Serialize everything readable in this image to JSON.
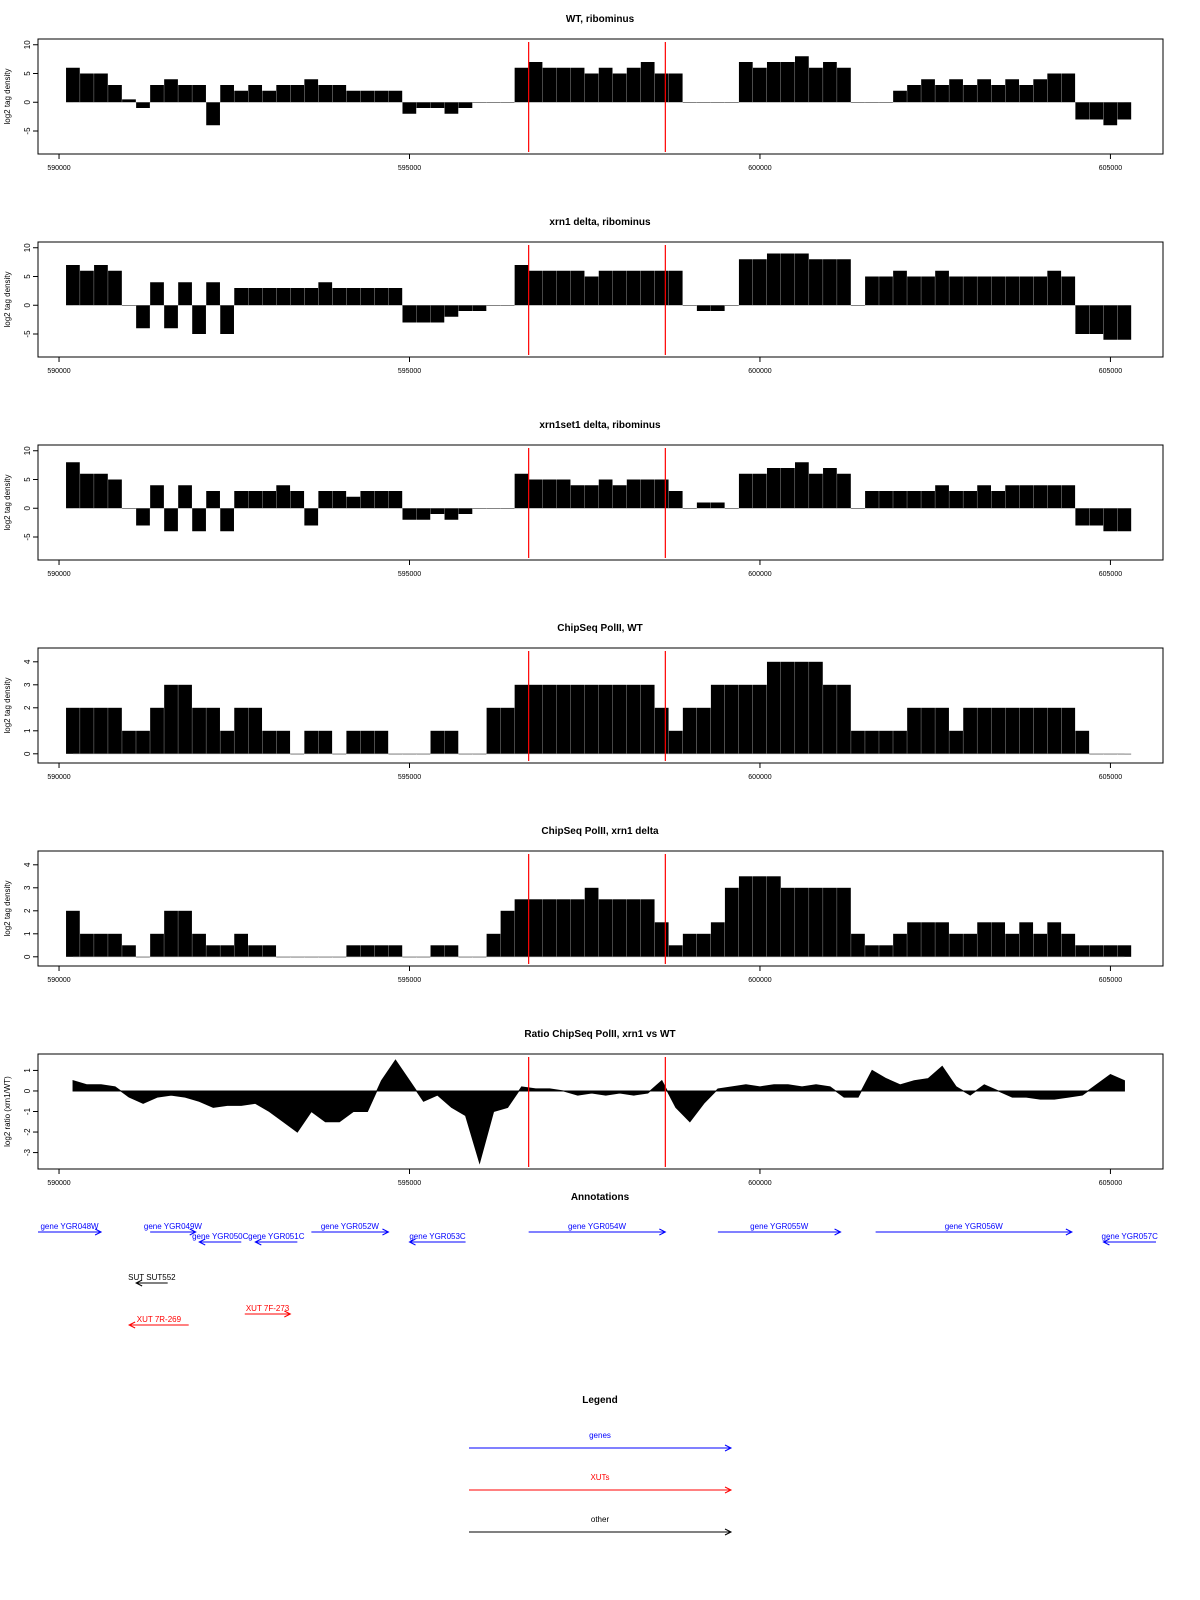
{
  "chart_data": [
    {
      "type": "bar",
      "title": "WT, ribominus",
      "ylabel": "log2 tag density",
      "xlim": [
        589700,
        605750
      ],
      "ylim": [
        -9,
        11
      ],
      "x_ticks": [
        590000,
        595000,
        600000,
        605000
      ],
      "y_ticks": [
        -5,
        0,
        5,
        10
      ],
      "x": [
        590200,
        590400,
        590600,
        590800,
        591000,
        591200,
        591400,
        591600,
        591800,
        592000,
        592200,
        592400,
        592600,
        592800,
        593000,
        593200,
        593400,
        593600,
        593800,
        594000,
        594200,
        594400,
        594600,
        594800,
        595000,
        595200,
        595400,
        595600,
        595800,
        596000,
        596200,
        596400,
        596600,
        596800,
        597000,
        597200,
        597400,
        597600,
        597800,
        598000,
        598200,
        598400,
        598600,
        598800,
        599000,
        599200,
        599400,
        599600,
        599800,
        600000,
        600200,
        600400,
        600600,
        600800,
        601000,
        601200,
        601400,
        601600,
        601800,
        602000,
        602200,
        602400,
        602600,
        602800,
        603000,
        603200,
        603400,
        603600,
        603800,
        604000,
        604200,
        604400,
        604600,
        604800,
        605000,
        605200
      ],
      "values": [
        6,
        5,
        5,
        3,
        0.5,
        -1,
        3,
        4,
        3,
        3,
        -4,
        3,
        2,
        3,
        2,
        3,
        3,
        4,
        3,
        3,
        2,
        2,
        2,
        2,
        -2,
        -1,
        -1,
        -2,
        -1,
        0,
        0,
        0,
        6,
        7,
        6,
        6,
        6,
        5,
        6,
        5,
        6,
        7,
        5,
        5,
        0,
        0,
        0,
        0,
        7,
        6,
        7,
        7,
        8,
        6,
        7,
        6,
        0,
        0,
        0,
        2,
        3,
        4,
        3,
        4,
        3,
        4,
        3,
        4,
        3,
        4,
        5,
        5,
        -3,
        -3,
        -4,
        -3
      ],
      "markers": [
        596700,
        598650
      ]
    },
    {
      "type": "bar",
      "title": "xrn1 delta, ribominus",
      "ylabel": "log2 tag density",
      "xlim": [
        589700,
        605750
      ],
      "ylim": [
        -9,
        11
      ],
      "x_ticks": [
        590000,
        595000,
        600000,
        605000
      ],
      "y_ticks": [
        -5,
        0,
        5,
        10
      ],
      "x": [
        590200,
        590400,
        590600,
        590800,
        591000,
        591200,
        591400,
        591600,
        591800,
        592000,
        592200,
        592400,
        592600,
        592800,
        593000,
        593200,
        593400,
        593600,
        593800,
        594000,
        594200,
        594400,
        594600,
        594800,
        595000,
        595200,
        595400,
        595600,
        595800,
        596000,
        596200,
        596400,
        596600,
        596800,
        597000,
        597200,
        597400,
        597600,
        597800,
        598000,
        598200,
        598400,
        598600,
        598800,
        599000,
        599200,
        599400,
        599600,
        599800,
        600000,
        600200,
        600400,
        600600,
        600800,
        601000,
        601200,
        601400,
        601600,
        601800,
        602000,
        602200,
        602400,
        602600,
        602800,
        603000,
        603200,
        603400,
        603600,
        603800,
        604000,
        604200,
        604400,
        604600,
        604800,
        605000,
        605200
      ],
      "values": [
        7,
        6,
        7,
        6,
        0,
        -4,
        4,
        -4,
        4,
        -5,
        4,
        -5,
        3,
        3,
        3,
        3,
        3,
        3,
        4,
        3,
        3,
        3,
        3,
        3,
        -3,
        -3,
        -3,
        -2,
        -1,
        -1,
        0,
        0,
        7,
        6,
        6,
        6,
        6,
        5,
        6,
        6,
        6,
        6,
        6,
        6,
        0,
        -1,
        -1,
        0,
        8,
        8,
        9,
        9,
        9,
        8,
        8,
        8,
        0,
        5,
        5,
        6,
        5,
        5,
        6,
        5,
        5,
        5,
        5,
        5,
        5,
        5,
        6,
        5,
        -5,
        -5,
        -6,
        -6
      ],
      "markers": [
        596700,
        598650
      ]
    },
    {
      "type": "bar",
      "title": "xrn1set1 delta, ribominus",
      "ylabel": "log2 tag density",
      "xlim": [
        589700,
        605750
      ],
      "ylim": [
        -9,
        11
      ],
      "x_ticks": [
        590000,
        595000,
        600000,
        605000
      ],
      "y_ticks": [
        -5,
        0,
        5,
        10
      ],
      "x": [
        590200,
        590400,
        590600,
        590800,
        591000,
        591200,
        591400,
        591600,
        591800,
        592000,
        592200,
        592400,
        592600,
        592800,
        593000,
        593200,
        593400,
        593600,
        593800,
        594000,
        594200,
        594400,
        594600,
        594800,
        595000,
        595200,
        595400,
        595600,
        595800,
        596000,
        596200,
        596400,
        596600,
        596800,
        597000,
        597200,
        597400,
        597600,
        597800,
        598000,
        598200,
        598400,
        598600,
        598800,
        599000,
        599200,
        599400,
        599600,
        599800,
        600000,
        600200,
        600400,
        600600,
        600800,
        601000,
        601200,
        601400,
        601600,
        601800,
        602000,
        602200,
        602400,
        602600,
        602800,
        603000,
        603200,
        603400,
        603600,
        603800,
        604000,
        604200,
        604400,
        604600,
        604800,
        605000,
        605200
      ],
      "values": [
        8,
        6,
        6,
        5,
        0,
        -3,
        4,
        -4,
        4,
        -4,
        3,
        -4,
        3,
        3,
        3,
        4,
        3,
        -3,
        3,
        3,
        2,
        3,
        3,
        3,
        -2,
        -2,
        -1,
        -2,
        -1,
        0,
        0,
        0,
        6,
        5,
        5,
        5,
        4,
        4,
        5,
        4,
        5,
        5,
        5,
        3,
        0,
        1,
        1,
        0,
        6,
        6,
        7,
        7,
        8,
        6,
        7,
        6,
        0,
        3,
        3,
        3,
        3,
        3,
        4,
        3,
        3,
        4,
        3,
        4,
        4,
        4,
        4,
        4,
        -3,
        -3,
        -4,
        -4
      ],
      "markers": [
        596700,
        598650
      ]
    },
    {
      "type": "bar",
      "title": "ChipSeq PolII, WT",
      "ylabel": "log2 tag density",
      "xlim": [
        589700,
        605750
      ],
      "ylim": [
        -0.4,
        4.6
      ],
      "x_ticks": [
        590000,
        595000,
        600000,
        605000
      ],
      "y_ticks": [
        0,
        1,
        2,
        3,
        4
      ],
      "x": [
        590200,
        590400,
        590600,
        590800,
        591000,
        591200,
        591400,
        591600,
        591800,
        592000,
        592200,
        592400,
        592600,
        592800,
        593000,
        593200,
        593400,
        593600,
        593800,
        594000,
        594200,
        594400,
        594600,
        594800,
        595000,
        595200,
        595400,
        595600,
        595800,
        596000,
        596200,
        596400,
        596600,
        596800,
        597000,
        597200,
        597400,
        597600,
        597800,
        598000,
        598200,
        598400,
        598600,
        598800,
        599000,
        599200,
        599400,
        599600,
        599800,
        600000,
        600200,
        600400,
        600600,
        600800,
        601000,
        601200,
        601400,
        601600,
        601800,
        602000,
        602200,
        602400,
        602600,
        602800,
        603000,
        603200,
        603400,
        603600,
        603800,
        604000,
        604200,
        604400,
        604600,
        604800,
        605000,
        605200
      ],
      "values": [
        2,
        2,
        2,
        2,
        1,
        1,
        2,
        3,
        3,
        2,
        2,
        1,
        2,
        2,
        1,
        1,
        0,
        1,
        1,
        0,
        1,
        1,
        1,
        0,
        0,
        0,
        1,
        1,
        0,
        0,
        2,
        2,
        3,
        3,
        3,
        3,
        3,
        3,
        3,
        3,
        3,
        3,
        2,
        1,
        2,
        2,
        3,
        3,
        3,
        3,
        4,
        4,
        4,
        4,
        3,
        3,
        1,
        1,
        1,
        1,
        2,
        2,
        2,
        1,
        2,
        2,
        2,
        2,
        2,
        2,
        2,
        2,
        1,
        0,
        0,
        0
      ],
      "markers": [
        596700,
        598650
      ]
    },
    {
      "type": "bar",
      "title": "ChipSeq PolII, xrn1 delta",
      "ylabel": "log2 tag density",
      "xlim": [
        589700,
        605750
      ],
      "ylim": [
        -0.4,
        4.6
      ],
      "x_ticks": [
        590000,
        595000,
        600000,
        605000
      ],
      "y_ticks": [
        0,
        1,
        2,
        3,
        4
      ],
      "x": [
        590200,
        590400,
        590600,
        590800,
        591000,
        591200,
        591400,
        591600,
        591800,
        592000,
        592200,
        592400,
        592600,
        592800,
        593000,
        593200,
        593400,
        593600,
        593800,
        594000,
        594200,
        594400,
        594600,
        594800,
        595000,
        595200,
        595400,
        595600,
        595800,
        596000,
        596200,
        596400,
        596600,
        596800,
        597000,
        597200,
        597400,
        597600,
        597800,
        598000,
        598200,
        598400,
        598600,
        598800,
        599000,
        599200,
        599400,
        599600,
        599800,
        600000,
        600200,
        600400,
        600600,
        600800,
        601000,
        601200,
        601400,
        601600,
        601800,
        602000,
        602200,
        602400,
        602600,
        602800,
        603000,
        603200,
        603400,
        603600,
        603800,
        604000,
        604200,
        604400,
        604600,
        604800,
        605000,
        605200
      ],
      "values": [
        2,
        1,
        1,
        1,
        0.5,
        0,
        1,
        2,
        2,
        1,
        0.5,
        0.5,
        1,
        0.5,
        0.5,
        0,
        0,
        0,
        0,
        0,
        0.5,
        0.5,
        0.5,
        0.5,
        0,
        0,
        0.5,
        0.5,
        0,
        0,
        1,
        2,
        2.5,
        2.5,
        2.5,
        2.5,
        2.5,
        3,
        2.5,
        2.5,
        2.5,
        2.5,
        1.5,
        0.5,
        1,
        1,
        1.5,
        3,
        3.5,
        3.5,
        3.5,
        3,
        3,
        3,
        3,
        3,
        1,
        0.5,
        0.5,
        1,
        1.5,
        1.5,
        1.5,
        1,
        1,
        1.5,
        1.5,
        1,
        1.5,
        1,
        1.5,
        1,
        0.5,
        0.5,
        0.5,
        0.5
      ],
      "markers": [
        596700,
        598650
      ]
    },
    {
      "type": "area",
      "title": "Ratio ChipSeq PolII, xrn1 vs WT",
      "ylabel": "log2 ratio (xrn1/WT)",
      "xlim": [
        589700,
        605750
      ],
      "ylim": [
        -3.8,
        1.8
      ],
      "x_ticks": [
        590000,
        595000,
        600000,
        605000
      ],
      "y_ticks": [
        -3,
        -2,
        -1,
        0,
        1
      ],
      "x": [
        590200,
        590400,
        590600,
        590800,
        591000,
        591200,
        591400,
        591600,
        591800,
        592000,
        592200,
        592400,
        592600,
        592800,
        593000,
        593200,
        593400,
        593600,
        593800,
        594000,
        594200,
        594400,
        594600,
        594800,
        595000,
        595200,
        595400,
        595600,
        595800,
        596000,
        596200,
        596400,
        596600,
        596800,
        597000,
        597200,
        597400,
        597600,
        597800,
        598000,
        598200,
        598400,
        598600,
        598800,
        599000,
        599200,
        599400,
        599600,
        599800,
        600000,
        600200,
        600400,
        600600,
        600800,
        601000,
        601200,
        601400,
        601600,
        601800,
        602000,
        602200,
        602400,
        602600,
        602800,
        603000,
        603200,
        603400,
        603600,
        603800,
        604000,
        604200,
        604400,
        604600,
        604800,
        605000,
        605200
      ],
      "values": [
        0.5,
        0.3,
        0.3,
        0.2,
        -0.3,
        -0.6,
        -0.3,
        -0.2,
        -0.3,
        -0.5,
        -0.8,
        -0.7,
        -0.7,
        -0.6,
        -1,
        -1.5,
        -2,
        -1,
        -1.5,
        -1.5,
        -1,
        -1,
        0.5,
        1.5,
        0.5,
        -0.5,
        -0.2,
        -0.8,
        -1.2,
        -3.5,
        -1,
        -0.8,
        0.2,
        0.1,
        0.1,
        0,
        -0.2,
        -0.1,
        -0.2,
        -0.1,
        -0.2,
        -0.1,
        0.5,
        -0.8,
        -1.5,
        -0.6,
        0.1,
        0.2,
        0.3,
        0.2,
        0.3,
        0.3,
        0.2,
        0.3,
        0.2,
        -0.3,
        -0.3,
        1,
        0.6,
        0.3,
        0.5,
        0.6,
        1.2,
        0.2,
        -0.2,
        0.3,
        0,
        -0.3,
        -0.3,
        -0.4,
        -0.4,
        -0.3,
        -0.2,
        0.3,
        0.8,
        0.5
      ],
      "markers": [
        596700,
        598650
      ]
    }
  ],
  "annotations": {
    "title": "Annotations",
    "features": [
      {
        "label": "gene YGR048W",
        "type": "gene",
        "start": 589700,
        "end": 590600,
        "strand": "+",
        "row": 0
      },
      {
        "label": "gene YGR049W",
        "type": "gene",
        "start": 591300,
        "end": 591950,
        "strand": "+",
        "row": 0
      },
      {
        "label": "gene YGR050C",
        "type": "gene",
        "start": 592000,
        "end": 592600,
        "strand": "-",
        "row": 1
      },
      {
        "label": "gene YGR051C",
        "type": "gene",
        "start": 592800,
        "end": 593400,
        "strand": "-",
        "row": 1
      },
      {
        "label": "gene YGR052W",
        "type": "gene",
        "start": 593600,
        "end": 594700,
        "strand": "+",
        "row": 0
      },
      {
        "label": "gene YGR053C",
        "type": "gene",
        "start": 595000,
        "end": 595800,
        "strand": "-",
        "row": 1
      },
      {
        "label": "gene YGR054W",
        "type": "gene",
        "start": 596700,
        "end": 598650,
        "strand": "+",
        "row": 0
      },
      {
        "label": "gene YGR055W",
        "type": "gene",
        "start": 599400,
        "end": 601150,
        "strand": "+",
        "row": 0
      },
      {
        "label": "gene YGR056W",
        "type": "gene",
        "start": 601650,
        "end": 604450,
        "strand": "+",
        "row": 0
      },
      {
        "label": "gene YGR057C",
        "type": "gene",
        "start": 604900,
        "end": 605650,
        "strand": "-",
        "row": 1
      },
      {
        "label": "SUT SUT552",
        "type": "other",
        "start": 591100,
        "end": 591550,
        "strand": "-",
        "row": 3
      },
      {
        "label": "XUT 7F-273",
        "type": "XUT",
        "start": 592650,
        "end": 593300,
        "strand": "+",
        "row": 5
      },
      {
        "label": "XUT 7R-269",
        "type": "XUT",
        "start": 591000,
        "end": 591850,
        "strand": "-",
        "row": 6
      }
    ]
  },
  "legend": {
    "title": "Legend",
    "items": [
      {
        "label": "genes",
        "color": "#0000ff"
      },
      {
        "label": "XUTs",
        "color": "#ff0000"
      },
      {
        "label": "other",
        "color": "#000000"
      }
    ]
  },
  "colors": {
    "bar": "#000000",
    "marker": "#ff0000",
    "gene": "#0000ff",
    "XUT": "#ff0000",
    "other": "#000000"
  }
}
